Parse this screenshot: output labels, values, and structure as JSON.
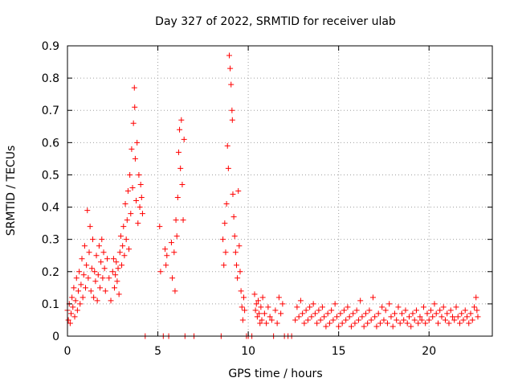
{
  "chart_data": {
    "type": "scatter",
    "title": "Day 327 of 2022, SRMTID for receiver ulab",
    "xlabel": "GPS time / hours",
    "ylabel": "SRMTID / TECUs",
    "xlim": [
      0,
      23.5
    ],
    "ylim": [
      0,
      0.9
    ],
    "x_ticks": [
      0,
      5,
      10,
      15,
      20
    ],
    "y_ticks": [
      0,
      0.1,
      0.2,
      0.3,
      0.4,
      0.5,
      0.6,
      0.7,
      0.8,
      0.9
    ],
    "x_tick_labels": [
      "0",
      "5",
      "10",
      "15",
      "20"
    ],
    "y_tick_labels": [
      "0",
      "0.1",
      "0.2",
      "0.3",
      "0.4",
      "0.5",
      "0.6",
      "0.7",
      "0.8",
      "0.9"
    ],
    "grid": true,
    "marker": "+",
    "color": "#ff0000",
    "series": [
      {
        "name": "SRMTID",
        "points": [
          [
            0.0,
            0.08
          ],
          [
            0.05,
            0.05
          ],
          [
            0.1,
            0.1
          ],
          [
            0.15,
            0.04
          ],
          [
            0.2,
            0.07
          ],
          [
            0.25,
            0.12
          ],
          [
            0.3,
            0.09
          ],
          [
            0.35,
            0.15
          ],
          [
            0.4,
            0.06
          ],
          [
            0.45,
            0.11
          ],
          [
            0.5,
            0.18
          ],
          [
            0.55,
            0.08
          ],
          [
            0.6,
            0.14
          ],
          [
            0.65,
            0.2
          ],
          [
            0.7,
            0.1
          ],
          [
            0.75,
            0.16
          ],
          [
            0.8,
            0.24
          ],
          [
            0.85,
            0.12
          ],
          [
            0.9,
            0.19
          ],
          [
            0.95,
            0.28
          ],
          [
            1.0,
            0.15
          ],
          [
            1.05,
            0.22
          ],
          [
            1.1,
            0.39
          ],
          [
            1.15,
            0.18
          ],
          [
            1.2,
            0.26
          ],
          [
            1.25,
            0.34
          ],
          [
            1.3,
            0.14
          ],
          [
            1.35,
            0.21
          ],
          [
            1.4,
            0.3
          ],
          [
            1.45,
            0.12
          ],
          [
            1.5,
            0.2
          ],
          [
            1.55,
            0.17
          ],
          [
            1.6,
            0.25
          ],
          [
            1.65,
            0.11
          ],
          [
            1.7,
            0.19
          ],
          [
            1.75,
            0.28
          ],
          [
            1.8,
            0.15
          ],
          [
            1.85,
            0.23
          ],
          [
            1.9,
            0.3
          ],
          [
            1.95,
            0.18
          ],
          [
            2.0,
            0.26
          ],
          [
            2.05,
            0.21
          ],
          [
            2.1,
            0.14
          ],
          [
            2.2,
            0.24
          ],
          [
            2.3,
            0.18
          ],
          [
            2.4,
            0.11
          ],
          [
            2.5,
            0.2
          ],
          [
            2.55,
            0.24
          ],
          [
            2.6,
            0.15
          ],
          [
            2.65,
            0.19
          ],
          [
            2.7,
            0.23
          ],
          [
            2.75,
            0.17
          ],
          [
            2.8,
            0.21
          ],
          [
            2.85,
            0.13
          ],
          [
            2.9,
            0.26
          ],
          [
            2.95,
            0.31
          ],
          [
            3.0,
            0.22
          ],
          [
            3.05,
            0.28
          ],
          [
            3.1,
            0.34
          ],
          [
            3.15,
            0.25
          ],
          [
            3.2,
            0.41
          ],
          [
            3.25,
            0.3
          ],
          [
            3.3,
            0.36
          ],
          [
            3.35,
            0.45
          ],
          [
            3.4,
            0.27
          ],
          [
            3.45,
            0.5
          ],
          [
            3.5,
            0.38
          ],
          [
            3.55,
            0.58
          ],
          [
            3.6,
            0.46
          ],
          [
            3.65,
            0.66
          ],
          [
            3.7,
            0.77
          ],
          [
            3.72,
            0.71
          ],
          [
            3.75,
            0.55
          ],
          [
            3.8,
            0.42
          ],
          [
            3.85,
            0.6
          ],
          [
            3.9,
            0.35
          ],
          [
            3.95,
            0.5
          ],
          [
            4.0,
            0.4
          ],
          [
            4.05,
            0.47
          ],
          [
            4.1,
            0.43
          ],
          [
            4.15,
            0.38
          ],
          [
            4.3,
            0.0
          ],
          [
            5.1,
            0.34
          ],
          [
            5.15,
            0.2
          ],
          [
            5.3,
            0.0
          ],
          [
            5.4,
            0.27
          ],
          [
            5.45,
            0.22
          ],
          [
            5.5,
            0.25
          ],
          [
            5.6,
            0.0
          ],
          [
            5.75,
            0.29
          ],
          [
            5.8,
            0.18
          ],
          [
            5.9,
            0.26
          ],
          [
            5.95,
            0.14
          ],
          [
            6.0,
            0.36
          ],
          [
            6.05,
            0.31
          ],
          [
            6.1,
            0.43
          ],
          [
            6.15,
            0.57
          ],
          [
            6.2,
            0.64
          ],
          [
            6.25,
            0.52
          ],
          [
            6.3,
            0.67
          ],
          [
            6.35,
            0.47
          ],
          [
            6.4,
            0.36
          ],
          [
            6.45,
            0.61
          ],
          [
            6.5,
            0.0
          ],
          [
            7.0,
            0.0
          ],
          [
            8.5,
            0.0
          ],
          [
            8.6,
            0.3
          ],
          [
            8.65,
            0.22
          ],
          [
            8.7,
            0.35
          ],
          [
            8.75,
            0.26
          ],
          [
            8.8,
            0.41
          ],
          [
            8.85,
            0.59
          ],
          [
            8.9,
            0.52
          ],
          [
            8.95,
            0.87
          ],
          [
            9.0,
            0.83
          ],
          [
            9.05,
            0.78
          ],
          [
            9.1,
            0.7
          ],
          [
            9.12,
            0.67
          ],
          [
            9.15,
            0.44
          ],
          [
            9.2,
            0.37
          ],
          [
            9.25,
            0.31
          ],
          [
            9.3,
            0.26
          ],
          [
            9.35,
            0.22
          ],
          [
            9.4,
            0.18
          ],
          [
            9.45,
            0.45
          ],
          [
            9.5,
            0.28
          ],
          [
            9.55,
            0.2
          ],
          [
            9.6,
            0.14
          ],
          [
            9.65,
            0.09
          ],
          [
            9.7,
            0.05
          ],
          [
            9.75,
            0.12
          ],
          [
            9.8,
            0.08
          ],
          [
            9.9,
            0.0
          ],
          [
            10.0,
            0.0
          ],
          [
            10.2,
            0.0
          ],
          [
            10.35,
            0.13
          ],
          [
            10.4,
            0.08
          ],
          [
            10.45,
            0.1
          ],
          [
            10.5,
            0.06
          ],
          [
            10.55,
            0.11
          ],
          [
            10.6,
            0.07
          ],
          [
            10.65,
            0.04
          ],
          [
            10.7,
            0.09
          ],
          [
            10.75,
            0.05
          ],
          [
            10.8,
            0.12
          ],
          [
            10.9,
            0.07
          ],
          [
            11.0,
            0.04
          ],
          [
            11.1,
            0.09
          ],
          [
            11.2,
            0.06
          ],
          [
            11.3,
            0.05
          ],
          [
            11.4,
            0.0
          ],
          [
            11.5,
            0.08
          ],
          [
            11.6,
            0.04
          ],
          [
            11.7,
            0.12
          ],
          [
            11.8,
            0.07
          ],
          [
            11.9,
            0.1
          ],
          [
            12.0,
            0.0
          ],
          [
            12.2,
            0.0
          ],
          [
            12.4,
            0.0
          ],
          [
            12.6,
            0.05
          ],
          [
            12.7,
            0.09
          ],
          [
            12.8,
            0.06
          ],
          [
            12.9,
            0.11
          ],
          [
            13.0,
            0.07
          ],
          [
            13.1,
            0.04
          ],
          [
            13.2,
            0.08
          ],
          [
            13.3,
            0.05
          ],
          [
            13.4,
            0.09
          ],
          [
            13.5,
            0.06
          ],
          [
            13.6,
            0.1
          ],
          [
            13.7,
            0.07
          ],
          [
            13.8,
            0.04
          ],
          [
            13.9,
            0.08
          ],
          [
            14.0,
            0.05
          ],
          [
            14.1,
            0.09
          ],
          [
            14.2,
            0.06
          ],
          [
            14.3,
            0.03
          ],
          [
            14.4,
            0.07
          ],
          [
            14.5,
            0.04
          ],
          [
            14.6,
            0.08
          ],
          [
            14.7,
            0.05
          ],
          [
            14.8,
            0.1
          ],
          [
            14.9,
            0.06
          ],
          [
            15.0,
            0.03
          ],
          [
            15.1,
            0.07
          ],
          [
            15.2,
            0.04
          ],
          [
            15.3,
            0.08
          ],
          [
            15.4,
            0.05
          ],
          [
            15.5,
            0.09
          ],
          [
            15.6,
            0.06
          ],
          [
            15.7,
            0.03
          ],
          [
            15.8,
            0.07
          ],
          [
            15.9,
            0.04
          ],
          [
            16.0,
            0.08
          ],
          [
            16.1,
            0.05
          ],
          [
            16.2,
            0.11
          ],
          [
            16.3,
            0.06
          ],
          [
            16.4,
            0.03
          ],
          [
            16.5,
            0.07
          ],
          [
            16.6,
            0.04
          ],
          [
            16.7,
            0.08
          ],
          [
            16.8,
            0.05
          ],
          [
            16.9,
            0.12
          ],
          [
            17.0,
            0.06
          ],
          [
            17.1,
            0.03
          ],
          [
            17.2,
            0.07
          ],
          [
            17.3,
            0.04
          ],
          [
            17.4,
            0.09
          ],
          [
            17.5,
            0.05
          ],
          [
            17.6,
            0.08
          ],
          [
            17.7,
            0.04
          ],
          [
            17.8,
            0.1
          ],
          [
            17.9,
            0.06
          ],
          [
            18.0,
            0.03
          ],
          [
            18.1,
            0.07
          ],
          [
            18.2,
            0.05
          ],
          [
            18.3,
            0.09
          ],
          [
            18.4,
            0.04
          ],
          [
            18.5,
            0.07
          ],
          [
            18.6,
            0.05
          ],
          [
            18.7,
            0.08
          ],
          [
            18.8,
            0.04
          ],
          [
            18.9,
            0.06
          ],
          [
            19.0,
            0.03
          ],
          [
            19.1,
            0.07
          ],
          [
            19.2,
            0.05
          ],
          [
            19.3,
            0.08
          ],
          [
            19.4,
            0.04
          ],
          [
            19.5,
            0.06
          ],
          [
            19.6,
            0.05
          ],
          [
            19.7,
            0.09
          ],
          [
            19.8,
            0.04
          ],
          [
            19.9,
            0.07
          ],
          [
            20.0,
            0.05
          ],
          [
            20.1,
            0.08
          ],
          [
            20.2,
            0.06
          ],
          [
            20.3,
            0.1
          ],
          [
            20.4,
            0.07
          ],
          [
            20.5,
            0.04
          ],
          [
            20.6,
            0.08
          ],
          [
            20.7,
            0.06
          ],
          [
            20.8,
            0.09
          ],
          [
            20.9,
            0.05
          ],
          [
            21.0,
            0.07
          ],
          [
            21.1,
            0.04
          ],
          [
            21.2,
            0.08
          ],
          [
            21.3,
            0.06
          ],
          [
            21.4,
            0.05
          ],
          [
            21.5,
            0.09
          ],
          [
            21.6,
            0.06
          ],
          [
            21.7,
            0.04
          ],
          [
            21.8,
            0.07
          ],
          [
            21.9,
            0.05
          ],
          [
            22.0,
            0.08
          ],
          [
            22.1,
            0.06
          ],
          [
            22.2,
            0.04
          ],
          [
            22.3,
            0.07
          ],
          [
            22.4,
            0.05
          ],
          [
            22.5,
            0.09
          ],
          [
            22.6,
            0.12
          ],
          [
            22.65,
            0.08
          ],
          [
            22.7,
            0.06
          ]
        ]
      }
    ]
  }
}
